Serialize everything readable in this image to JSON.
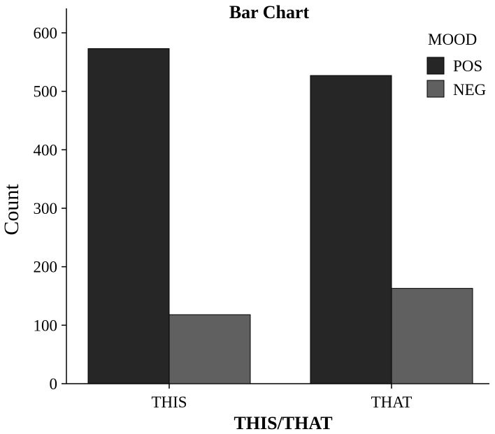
{
  "chart_data": {
    "type": "bar",
    "title": "Bar Chart",
    "xlabel": "THIS/THAT",
    "ylabel": "Count",
    "categories": [
      "THIS",
      "THAT"
    ],
    "series": [
      {
        "name": "POS",
        "values": [
          573,
          527
        ],
        "color": "#262626"
      },
      {
        "name": "NEG",
        "values": [
          118,
          163
        ],
        "color": "#606060"
      }
    ],
    "ylim": [
      0,
      620
    ],
    "yticks": [
      0,
      100,
      200,
      300,
      400,
      500,
      600
    ],
    "legend": {
      "title": "MOOD",
      "position": "top-right"
    },
    "grid": false
  }
}
